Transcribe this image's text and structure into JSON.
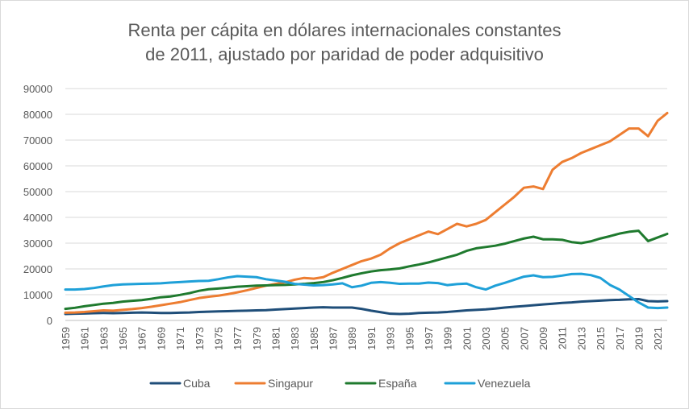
{
  "chart_data": {
    "type": "line",
    "title_lines": [
      "Renta per cápita en dólares internacionales constantes",
      "de 2011, ajustado por paridad de poder adquisitivo"
    ],
    "xlabel": "",
    "ylabel": "",
    "ylim": [
      0,
      90000
    ],
    "yticks": [
      0,
      10000,
      20000,
      30000,
      40000,
      50000,
      60000,
      70000,
      80000,
      90000
    ],
    "xlim": [
      1959,
      2022
    ],
    "xtick_labels": [
      "1959",
      "1961",
      "1963",
      "1965",
      "1967",
      "1969",
      "1971",
      "1973",
      "1975",
      "1977",
      "1979",
      "1981",
      "1983",
      "1985",
      "1987",
      "1989",
      "1991",
      "1993",
      "1995",
      "1997",
      "1999",
      "2001",
      "2003",
      "2005",
      "2007",
      "2009",
      "2011",
      "2013",
      "2015",
      "2017",
      "2019",
      "2021"
    ],
    "grid": true,
    "legend_position": "bottom",
    "x": [
      1959,
      1960,
      1961,
      1962,
      1963,
      1964,
      1965,
      1966,
      1967,
      1968,
      1969,
      1970,
      1971,
      1972,
      1973,
      1974,
      1975,
      1976,
      1977,
      1978,
      1979,
      1980,
      1981,
      1982,
      1983,
      1984,
      1985,
      1986,
      1987,
      1988,
      1989,
      1990,
      1991,
      1992,
      1993,
      1994,
      1995,
      1996,
      1997,
      1998,
      1999,
      2000,
      2001,
      2002,
      2003,
      2004,
      2005,
      2006,
      2007,
      2008,
      2009,
      2010,
      2011,
      2012,
      2013,
      2014,
      2015,
      2016,
      2017,
      2018,
      2019,
      2020,
      2021,
      2022
    ],
    "series": [
      {
        "name": "Cuba",
        "color": "#1f4e79",
        "values": [
          2500,
          2600,
          2700,
          2800,
          2900,
          2800,
          2900,
          3000,
          3100,
          3000,
          2900,
          2900,
          3000,
          3100,
          3300,
          3400,
          3500,
          3600,
          3700,
          3800,
          3900,
          4000,
          4200,
          4400,
          4600,
          4800,
          5000,
          5100,
          5000,
          5000,
          5000,
          4500,
          3800,
          3200,
          2600,
          2500,
          2600,
          2900,
          3000,
          3100,
          3300,
          3600,
          3900,
          4100,
          4300,
          4600,
          5000,
          5300,
          5600,
          5900,
          6200,
          6500,
          6800,
          7000,
          7300,
          7500,
          7700,
          7900,
          8000,
          8200,
          8300,
          7500,
          7400,
          7500
        ]
      },
      {
        "name": "Singapur",
        "color": "#ed7d31",
        "values": [
          3000,
          3100,
          3300,
          3600,
          3900,
          3800,
          4100,
          4400,
          4800,
          5300,
          5900,
          6500,
          7100,
          7900,
          8700,
          9200,
          9600,
          10200,
          10900,
          11700,
          12600,
          13500,
          14200,
          14800,
          15800,
          16500,
          16200,
          16800,
          18500,
          20000,
          21500,
          23000,
          24000,
          25500,
          28000,
          30000,
          31500,
          33000,
          34500,
          33500,
          35500,
          37500,
          36500,
          37500,
          39000,
          42000,
          45000,
          48000,
          51500,
          52000,
          51000,
          58500,
          61500,
          63000,
          65000,
          66500,
          68000,
          69500,
          72000,
          74500,
          74500,
          71500,
          77500,
          80500
        ]
      },
      {
        "name": "España",
        "color": "#1f7a2e",
        "values": [
          4500,
          4900,
          5500,
          6000,
          6500,
          6800,
          7300,
          7600,
          7900,
          8400,
          9000,
          9300,
          9900,
          10600,
          11500,
          12100,
          12400,
          12700,
          13100,
          13300,
          13500,
          13600,
          13700,
          13800,
          14000,
          14200,
          14500,
          14900,
          15600,
          16500,
          17500,
          18300,
          19000,
          19500,
          19800,
          20200,
          21000,
          21700,
          22500,
          23500,
          24500,
          25500,
          27000,
          28000,
          28500,
          29000,
          29800,
          30800,
          31800,
          32500,
          31500,
          31500,
          31300,
          30400,
          30000,
          30700,
          31800,
          32700,
          33700,
          34400,
          34800,
          30800,
          32200,
          33600
        ]
      },
      {
        "name": "Venezuela",
        "color": "#1ea0d8",
        "values": [
          12000,
          12000,
          12200,
          12600,
          13200,
          13700,
          14000,
          14100,
          14200,
          14300,
          14400,
          14700,
          14900,
          15100,
          15300,
          15400,
          16000,
          16700,
          17200,
          17000,
          16800,
          16000,
          15500,
          15000,
          14200,
          13900,
          13600,
          13700,
          14000,
          14400,
          12900,
          13500,
          14600,
          14900,
          14600,
          14200,
          14300,
          14300,
          14700,
          14500,
          13700,
          14100,
          14300,
          12900,
          12000,
          13500,
          14600,
          15800,
          17000,
          17500,
          16800,
          16900,
          17400,
          18000,
          18100,
          17600,
          16500,
          13800,
          12000,
          9500,
          7000,
          5000,
          4800,
          5000
        ]
      }
    ]
  }
}
